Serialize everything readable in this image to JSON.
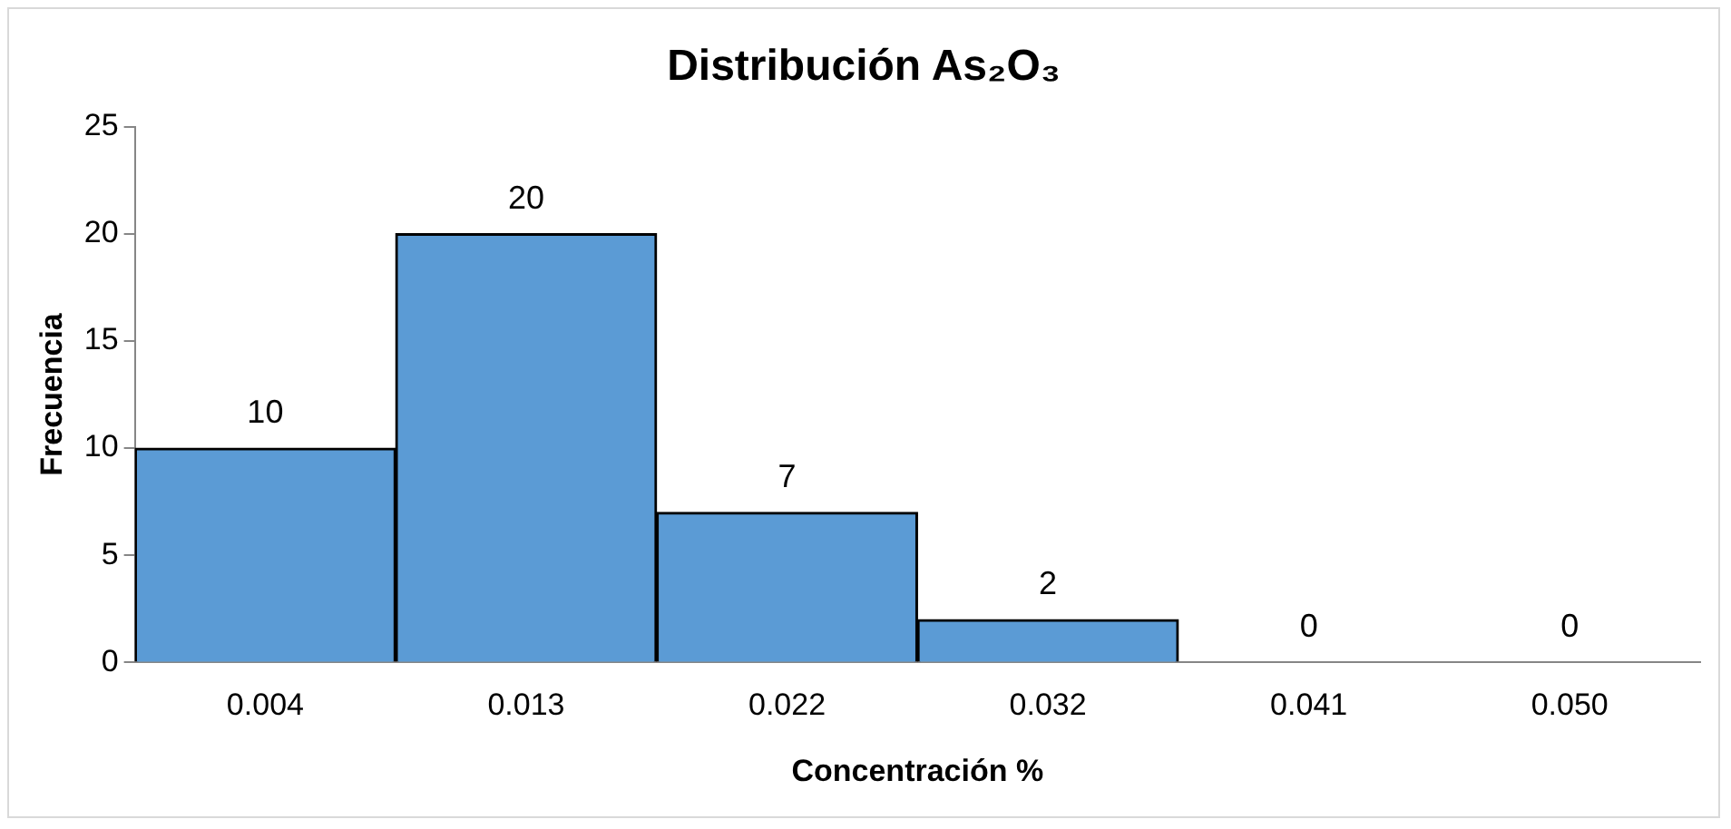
{
  "chart_data": {
    "type": "bar",
    "title": "Distribución As₂O₃",
    "xlabel": "Concentración %",
    "ylabel": "Frecuencia",
    "categories": [
      "0.004",
      "0.013",
      "0.022",
      "0.032",
      "0.041",
      "0.050"
    ],
    "values": [
      10,
      20,
      7,
      2,
      0,
      0
    ],
    "color": "#5b9bd5",
    "ylim": [
      0,
      25
    ],
    "yticks": [
      0,
      5,
      10,
      15,
      20,
      25
    ],
    "grid": false,
    "data_labels": true
  }
}
